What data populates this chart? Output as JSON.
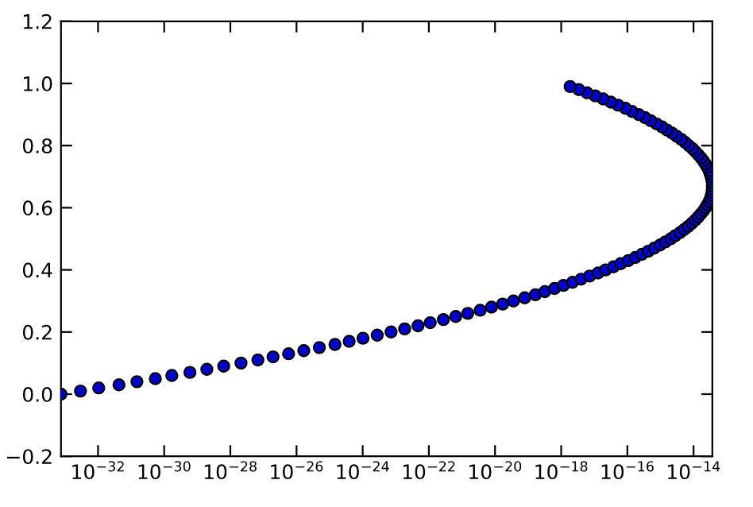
{
  "chart_data": {
    "type": "scatter",
    "log": "x",
    "grid": false,
    "marker": "circle",
    "xlim": [
      7.6e-34,
      3.7e-14
    ],
    "xticks": [
      {
        "value": 1e-32,
        "label": "10$^{−32}$"
      },
      {
        "value": 1e-30,
        "label": "10$^{−30}$"
      },
      {
        "value": 1e-28,
        "label": "10$^{−28}$"
      },
      {
        "value": 1e-26,
        "label": "10$^{−26}$"
      },
      {
        "value": 1e-24,
        "label": "10$^{−24}$"
      },
      {
        "value": 1e-22,
        "label": "10$^{−22}$"
      },
      {
        "value": 1e-20,
        "label": "10$^{−20}$"
      },
      {
        "value": 1e-18,
        "label": "10$^{−18}$"
      },
      {
        "value": 1e-16,
        "label": "10$^{−16}$"
      },
      {
        "value": 1e-14,
        "label": "10$^{−14}$"
      }
    ],
    "ylim": [
      -0.2,
      1.2
    ],
    "yticks": [
      {
        "value": -0.2,
        "label": "−0.2"
      },
      {
        "value": 0.0,
        "label": "0.0"
      },
      {
        "value": 0.2,
        "label": "0.2"
      },
      {
        "value": 0.4,
        "label": "0.4"
      },
      {
        "value": 0.6,
        "label": "0.6"
      },
      {
        "value": 0.8,
        "label": "0.8"
      },
      {
        "value": 1.0,
        "label": "1.0"
      },
      {
        "value": 1.2,
        "label": "1.2"
      }
    ],
    "series": [
      {
        "color": "#0000cc",
        "x": [
          7.6e-34,
          2.95e-33,
          1.05e-32,
          4.3e-32,
          1.5e-31,
          5.4e-31,
          1.7e-30,
          6e-30,
          1.95e-29,
          6.3e-29,
          2.1e-28,
          6.8e-28,
          1.95e-27,
          5.75e-27,
          1.66e-26,
          4.9e-26,
          1.45e-25,
          3.9e-25,
          1.02e-24,
          2.75e-24,
          7.2e-24,
          1.86e-23,
          4.7e-23,
          1.1e-22,
          2.75e-22,
          6.5e-22,
          1.5e-21,
          3.55e-21,
          7.8e-21,
          1.7e-20,
          3.6e-20,
          7.9e-20,
          1.66e-19,
          3.2e-19,
          6.3e-19,
          1.17e-18,
          2.2e-18,
          4e-18,
          7.2e-18,
          1.3e-17,
          2.2e-17,
          3.8e-17,
          6.3e-17,
          1.07e-16,
          1.74e-16,
          2.75e-16,
          4.3e-16,
          6.5e-16,
          9.8e-16,
          1.41e-15,
          2.05e-15,
          2.8e-15,
          3.9e-15,
          5.25e-15,
          6.9e-15,
          8.9e-15,
          1.12e-14,
          1.38e-14,
          1.66e-14,
          2e-14,
          2.3e-14,
          2.63e-14,
          2.95e-14,
          3.24e-14,
          3.47e-14,
          3.63e-14,
          3.7e-14,
          3.7e-14,
          3.7e-14,
          3.55e-14,
          3.4e-14,
          3.16e-14,
          2.95e-14,
          2.63e-14,
          2.3e-14,
          2e-14,
          1.7e-14,
          1.41e-14,
          1.15e-14,
          9.3e-15,
          7.2e-15,
          5.6e-15,
          4.3e-15,
          3.1e-15,
          2.24e-15,
          1.58e-15,
          1.12e-15,
          7.6e-16,
          5.1e-16,
          3.4e-16,
          2.2e-16,
          1.38e-16,
          8.7e-17,
          5.25e-17,
          3.16e-17,
          1.86e-17,
          1.07e-17,
          6e-18,
          3.4e-18,
          1.86e-18
        ],
        "values": [
          0.0,
          0.01,
          0.02,
          0.03,
          0.04,
          0.05,
          0.06,
          0.07,
          0.08,
          0.09,
          0.1,
          0.11,
          0.12,
          0.13,
          0.14,
          0.15,
          0.16,
          0.17,
          0.18,
          0.19,
          0.2,
          0.21,
          0.22,
          0.23,
          0.24,
          0.25,
          0.26,
          0.27,
          0.28,
          0.29,
          0.3,
          0.31,
          0.32,
          0.33,
          0.34,
          0.35,
          0.36,
          0.37,
          0.38,
          0.39,
          0.4,
          0.41,
          0.42,
          0.43,
          0.44,
          0.45,
          0.46,
          0.47,
          0.48,
          0.49,
          0.5,
          0.51,
          0.52,
          0.53,
          0.54,
          0.55,
          0.56,
          0.57,
          0.58,
          0.59,
          0.6,
          0.61,
          0.62,
          0.63,
          0.64,
          0.65,
          0.66,
          0.67,
          0.68,
          0.69,
          0.7,
          0.71,
          0.72,
          0.73,
          0.74,
          0.75,
          0.76,
          0.77,
          0.78,
          0.79,
          0.8,
          0.81,
          0.82,
          0.83,
          0.84,
          0.85,
          0.86,
          0.87,
          0.88,
          0.89,
          0.9,
          0.91,
          0.92,
          0.93,
          0.94,
          0.95,
          0.96,
          0.97,
          0.98,
          0.99
        ]
      }
    ]
  }
}
